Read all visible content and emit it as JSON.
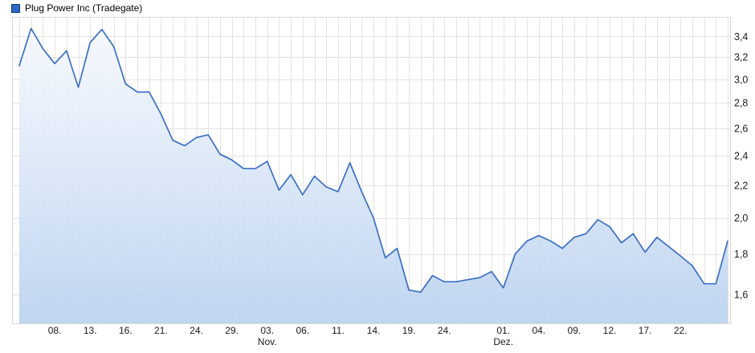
{
  "legend": {
    "label": "Plug Power Inc (Tradegate)",
    "swatch_color": "#2e67c8",
    "swatch_border": "#123a7a"
  },
  "colors": {
    "background": "#ffffff",
    "line": "#3b6fc4",
    "area_top": "#f4f8fd",
    "area_bottom": "#bcd3f0",
    "grid": "#e3e3e3",
    "frame": "#d9d9d9",
    "axis_text": "#1a1a1a"
  },
  "chart_data": {
    "type": "area",
    "title": "Plug Power Inc (Tradegate)",
    "grid": "on",
    "legend_position": "top-left",
    "y_axis": {
      "position": "right",
      "scale": "log",
      "range": [
        1.47,
        3.6
      ],
      "tick_values": [
        3.4,
        3.2,
        3.0,
        2.8,
        2.6,
        2.4,
        2.2,
        2.0,
        1.8,
        1.6
      ],
      "tick_labels": [
        "3,4",
        "3,2",
        "3,0",
        "2,8",
        "2,6",
        "2,4",
        "2,2",
        "2,0",
        "1,8",
        "1,6"
      ]
    },
    "x_axis": {
      "unit": "trading-days",
      "tick_positions": [
        3,
        6,
        9,
        12,
        15,
        18,
        21,
        24,
        27,
        30,
        33,
        36,
        41,
        44,
        47,
        50,
        53,
        56
      ],
      "tick_labels": [
        "08.",
        "13.",
        "16.",
        "21.",
        "24.",
        "29.",
        "03.",
        "06.",
        "11.",
        "14.",
        "19.",
        "24.",
        "01.",
        "04.",
        "09.",
        "12.",
        "17.",
        "22."
      ],
      "month_labels": [
        {
          "label": "Nov.",
          "position": 21
        },
        {
          "label": "Dez.",
          "position": 41
        }
      ]
    },
    "series": [
      {
        "name": "Plug Power Inc (Tradegate)",
        "values": [
          3.12,
          3.48,
          3.28,
          3.14,
          3.26,
          2.93,
          3.34,
          3.47,
          3.3,
          2.96,
          2.89,
          2.89,
          2.71,
          2.51,
          2.47,
          2.53,
          2.55,
          2.41,
          2.37,
          2.31,
          2.31,
          2.36,
          2.17,
          2.27,
          2.14,
          2.26,
          2.19,
          2.16,
          2.35,
          2.16,
          2.0,
          1.78,
          1.83,
          1.62,
          1.61,
          1.69,
          1.66,
          1.66,
          1.67,
          1.68,
          1.71,
          1.63,
          1.8,
          1.87,
          1.9,
          1.87,
          1.83,
          1.89,
          1.91,
          1.99,
          1.95,
          1.86,
          1.91,
          1.81,
          1.89,
          1.84,
          1.79,
          1.74,
          1.65,
          1.65,
          1.87
        ]
      }
    ]
  }
}
